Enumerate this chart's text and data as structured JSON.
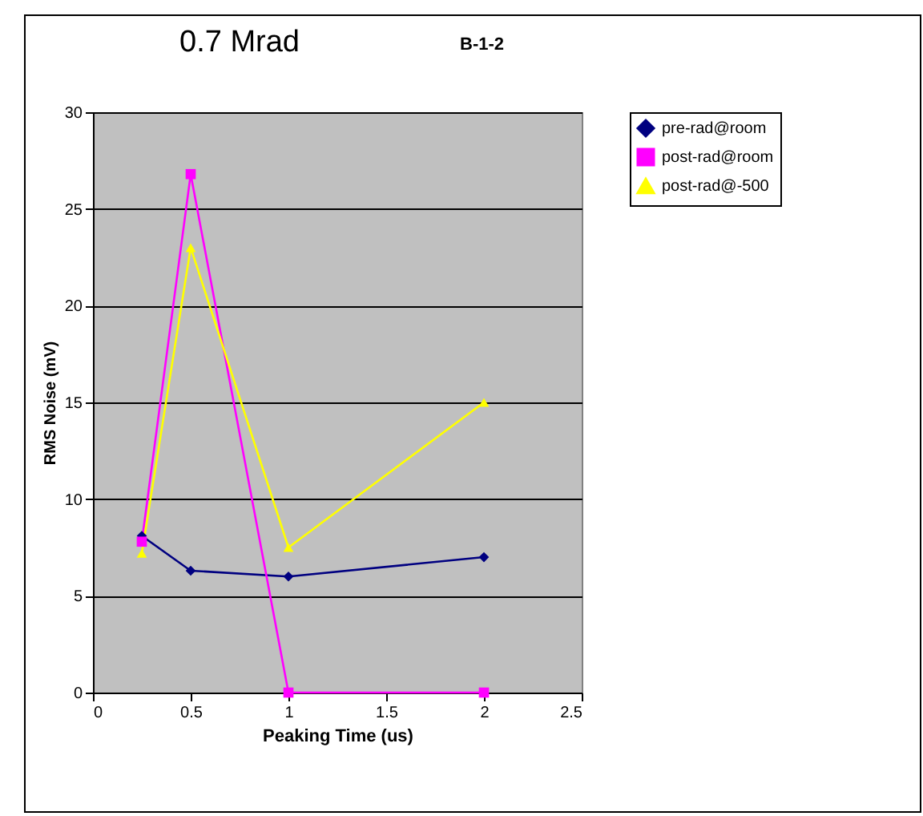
{
  "chart_data": {
    "type": "line",
    "title": "0.7 Mrad",
    "subtitle": "B-1-2",
    "xlabel": "Peaking Time (us)",
    "ylabel": "RMS Noise (mV)",
    "x": [
      0.25,
      0.5,
      1,
      2
    ],
    "series": [
      {
        "name": "pre-rad@room",
        "color": "#000080",
        "marker": "diamond",
        "values": [
          8.1,
          6.3,
          6.0,
          7.0
        ]
      },
      {
        "name": "post-rad@room",
        "color": "#ff00ff",
        "marker": "square",
        "values": [
          7.8,
          26.8,
          0,
          0
        ]
      },
      {
        "name": "post-rad@-500",
        "color": "#ffff00",
        "marker": "triangle",
        "values": [
          7.2,
          23,
          7.5,
          15
        ]
      }
    ],
    "xlim": [
      0,
      2.5
    ],
    "xticks": [
      0,
      0.5,
      1,
      1.5,
      2,
      2.5
    ],
    "ylim": [
      0,
      30
    ],
    "yticks": [
      0,
      5,
      10,
      15,
      20,
      25,
      30
    ],
    "grid": "y",
    "legend": "right",
    "line_style": "solid"
  }
}
